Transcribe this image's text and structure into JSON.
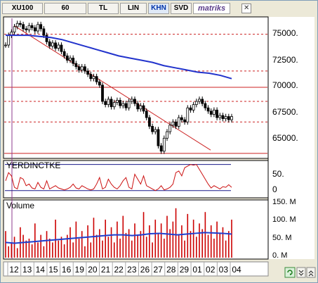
{
  "toolbar": {
    "symbol": "XU100",
    "period": "60",
    "currency": "TL",
    "scale": "LIN",
    "chart_type": "KHN",
    "indicator": "SVD",
    "brand": "matriks",
    "close_glyph": "✕"
  },
  "panels": {
    "oscillator_label": "YERDINCTKE",
    "volume_label": "Volume"
  },
  "price_axis": [
    "75000.",
    "72500.",
    "70000.",
    "67500.",
    "65000."
  ],
  "osc_axis": [
    "50.",
    "0"
  ],
  "vol_axis": [
    "150. M",
    "100. M",
    "50. M",
    "0. M"
  ],
  "dates": [
    "12",
    "13",
    "14",
    "15",
    "16",
    "19",
    "20",
    "21",
    "22",
    "23",
    "26",
    "27",
    "28",
    "29",
    "01",
    "02",
    "03",
    "04"
  ],
  "colors": {
    "ma_line": "#2233cc",
    "trend_line": "#cc2222",
    "candle": "#000000",
    "volume_bar": "#cc0000",
    "volume_ma": "#1f3fcf",
    "osc_line": "#cc1111",
    "osc_band": "#1a1a8a"
  },
  "chart_data": {
    "type": "candlestick",
    "x_labels": [
      "12",
      "13",
      "14",
      "15",
      "16",
      "19",
      "20",
      "21",
      "22",
      "23",
      "26",
      "27",
      "28",
      "29",
      "01",
      "02",
      "03",
      "04"
    ],
    "ylim": [
      63500,
      76500
    ],
    "reference_levels_dashed": [
      74900,
      71500,
      68700,
      66800
    ],
    "reference_level_solid": 70000,
    "close": [
      73900,
      74800,
      75100,
      75600,
      75900,
      75800,
      75400,
      75300,
      75700,
      75500,
      75200,
      75800,
      75400,
      74800,
      74200,
      73800,
      74100,
      73600,
      73900,
      73300,
      72900,
      72500,
      72700,
      72200,
      71900,
      71600,
      71900,
      71500,
      71200,
      70800,
      71000,
      70500,
      70200,
      68700,
      68400,
      68900,
      68200,
      68600,
      68800,
      68300,
      68500,
      68100,
      68700,
      68900,
      68500,
      68000,
      68300,
      67800,
      67200,
      66400,
      65900,
      66100,
      64600,
      64100,
      65300,
      65900,
      66500,
      66800,
      66400,
      67200,
      67000,
      66800,
      68100,
      67900,
      68400,
      68700,
      68900,
      68500,
      68100,
      67800,
      67500,
      67900,
      67200,
      67400,
      67100,
      67300,
      67000,
      67300
    ],
    "moving_average": [
      74800,
      74800,
      74800,
      74700,
      74600,
      74400,
      74100,
      73800,
      73500,
      73200,
      72900,
      72700,
      72500,
      72300,
      72000,
      71800,
      71600,
      71400,
      71300,
      71100,
      70800
    ],
    "trend_line": {
      "from_value": 75700,
      "to_value": 64200
    },
    "oscillator": {
      "name": "YERDINCTKE",
      "ylim": [
        -20,
        90
      ],
      "upper_band": 80,
      "lower_band": 0,
      "values": [
        30,
        55,
        45,
        10,
        5,
        40,
        35,
        15,
        20,
        8,
        5,
        25,
        10,
        5,
        30,
        5,
        10,
        15,
        8,
        5,
        2,
        5,
        10,
        20,
        8,
        5,
        15,
        10,
        5,
        2,
        5,
        20,
        40,
        5,
        10,
        35,
        20,
        10,
        5,
        15,
        30,
        40,
        10,
        5,
        50,
        35,
        20,
        45,
        15,
        10,
        5,
        0,
        5,
        15,
        2,
        5,
        10,
        20,
        55,
        60,
        45,
        70,
        75,
        80,
        78,
        80,
        65,
        50,
        35,
        20,
        8,
        15,
        10,
        5,
        12,
        10,
        18,
        10
      ]
    },
    "volume": {
      "name": "Volume",
      "ylim": [
        0,
        150
      ],
      "unit": "M",
      "values": [
        70,
        30,
        40,
        55,
        25,
        80,
        60,
        45,
        50,
        35,
        90,
        40,
        60,
        30,
        70,
        50,
        40,
        100,
        45,
        55,
        35,
        60,
        80,
        40,
        95,
        50,
        70,
        30,
        85,
        40,
        105,
        60,
        75,
        45,
        100,
        55,
        80,
        40,
        95,
        50,
        110,
        65,
        75,
        45,
        90,
        60,
        70,
        120,
        55,
        85,
        40,
        100,
        65,
        90,
        50,
        110,
        75,
        95,
        130,
        60,
        85,
        45,
        115,
        70,
        100,
        55,
        90,
        75,
        120,
        60,
        85,
        50,
        95,
        65,
        80,
        45,
        70,
        100
      ],
      "moving_average": [
        40,
        38,
        40,
        42,
        44,
        46,
        48,
        50,
        52,
        54,
        56,
        58,
        60,
        60,
        58,
        60,
        63,
        64,
        62,
        60,
        62,
        64,
        66,
        65,
        64,
        62
      ]
    }
  }
}
